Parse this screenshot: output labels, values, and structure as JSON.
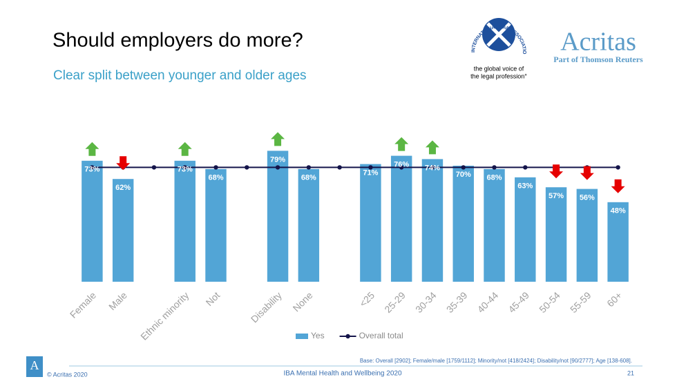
{
  "header": {
    "title": "Should employers do more?",
    "subtitle": "Clear split between younger and older ages",
    "iba": {
      "ring": "INTERNATIONAL BAR ASSOCIATION",
      "tagline_1": "the global voice of",
      "tagline_2": "the legal profession°"
    },
    "acritas": {
      "name": "Acritas",
      "tag": "Part of Thomson Reuters"
    }
  },
  "chart_data": {
    "type": "bar",
    "categories": [
      "Female",
      "Male",
      null,
      "Ethnic minority",
      "Not",
      null,
      "Disability",
      "None",
      null,
      "<25",
      "25-29",
      "30-34",
      "35-39",
      "40-44",
      "45-49",
      "50-54",
      "55-59",
      "60+"
    ],
    "series": [
      {
        "name": "Yes",
        "type": "bar",
        "color": "#52a5d6",
        "values": [
          73,
          62,
          null,
          73,
          68,
          null,
          79,
          68,
          null,
          71,
          76,
          74,
          70,
          68,
          63,
          57,
          56,
          48
        ],
        "value_labels": [
          "73%",
          "62%",
          null,
          "73%",
          "68%",
          null,
          "79%",
          "68%",
          null,
          "71%",
          "76%",
          "74%",
          "70%",
          "68%",
          "63%",
          "57%",
          "56%",
          "48%"
        ]
      },
      {
        "name": "Overall total",
        "type": "line",
        "color": "#14144a",
        "values": [
          69,
          69,
          69,
          69,
          69,
          69,
          69,
          69,
          69,
          69,
          69,
          69,
          69,
          69,
          69,
          69,
          69,
          69
        ]
      }
    ],
    "significance": [
      "up",
      "down",
      null,
      "up",
      null,
      null,
      "up",
      null,
      null,
      null,
      "up",
      "up",
      null,
      null,
      null,
      "down",
      "down",
      "down"
    ],
    "ylim": [
      0,
      100
    ],
    "legend": "bottom"
  },
  "footer": {
    "base": "Base: Overall [2902]; Female/male [1759/1112]; Minority/not [418/2424]; Disability/not [90/2777]; Age [138-608].",
    "logo": "A",
    "copyright": "© Acritas 2020",
    "center": "IBA Mental Health and Wellbeing 2020",
    "page": "21"
  }
}
